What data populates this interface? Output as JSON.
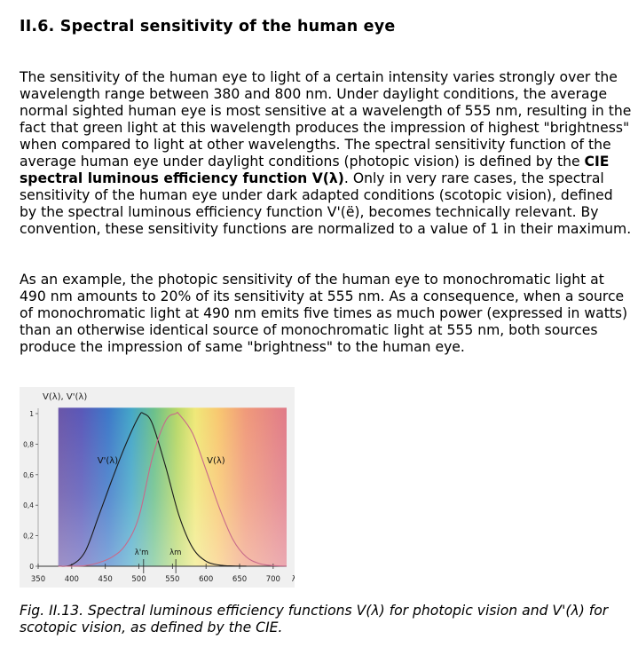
{
  "section": {
    "title": "II.6. Spectral sensitivity of the human eye"
  },
  "paragraph1": {
    "before_bold": "The sensitivity of the human eye to light of a certain intensity varies strongly over the wavelength range between 380 and 800 nm. Under daylight conditions, the average normal sighted human eye is most sensitive at a wavelength of 555 nm, resulting in the fact that green light at this wavelength produces the impression of highest \"brightness\" when compared to light at other wavelengths. The spectral sensitivity function of the average human eye under daylight conditions (photopic vision) is defined by the ",
    "bold": "CIE spectral luminous efficiency function V(λ)",
    "after_bold": ". Only in very rare cases, the spectral sensitivity of the human eye under dark adapted conditions (scotopic vision), defined by the spectral luminous efficiency function V'(ë), becomes technically relevant. By convention, these sensitivity functions are normalized to a value of 1 in their maximum."
  },
  "paragraph2": {
    "text": "As an example, the photopic sensitivity of the human eye to monochromatic light at 490 nm amounts to 20% of its sensitivity at 555 nm. As a consequence, when a source of monochromatic light at 490 nm emits five times as much power (expressed in watts) than an otherwise identical source of monochromatic light at 555 nm, both sources produce the impression of same \"brightness\" to the human eye."
  },
  "figure": {
    "caption": "Fig. II.13. Spectral luminous efficiency functions V(λ) for photopic vision and V'(λ) for scotopic vision, as defined by the CIE."
  },
  "chart_data": {
    "type": "line",
    "title": "",
    "ylabel": "V(λ), V'(λ)",
    "xlabel": "λ[nm]",
    "xlim": [
      350,
      720
    ],
    "ylim": [
      0,
      1.05
    ],
    "x_ticks": [
      350,
      400,
      450,
      500,
      550,
      600,
      650,
      700
    ],
    "y_ticks": [
      {
        "value": 0,
        "label": "0"
      },
      {
        "value": 0.2,
        "label": "0,2"
      },
      {
        "value": 0.4,
        "label": "0,4"
      },
      {
        "value": 0.6,
        "label": "0,6"
      },
      {
        "value": 0.8,
        "label": "0,8"
      },
      {
        "value": 1,
        "label": "1"
      }
    ],
    "spectrum_background": {
      "from": 380,
      "to": 720
    },
    "grid": false,
    "series": [
      {
        "name": "V'(λ)",
        "color": "#1a1a1a",
        "peak_label": "λ'm",
        "peak_x": 507,
        "x": [
          380,
          400,
          420,
          440,
          460,
          480,
          500,
          507,
          520,
          540,
          560,
          580,
          600,
          620,
          640,
          660
        ],
        "y": [
          0.0006,
          0.0093,
          0.0966,
          0.3281,
          0.567,
          0.793,
          0.982,
          1.0,
          0.935,
          0.65,
          0.329,
          0.1212,
          0.0332,
          0.0074,
          0.0015,
          0.0003
        ]
      },
      {
        "name": "V(λ)",
        "color": "#c86a8a",
        "peak_label": "λm",
        "peak_x": 555,
        "x": [
          380,
          400,
          420,
          440,
          460,
          480,
          500,
          520,
          540,
          555,
          560,
          580,
          600,
          620,
          640,
          660,
          680,
          700,
          720
        ],
        "y": [
          0.0,
          0.0004,
          0.004,
          0.023,
          0.06,
          0.139,
          0.323,
          0.71,
          0.954,
          1.0,
          0.995,
          0.87,
          0.631,
          0.381,
          0.175,
          0.061,
          0.017,
          0.004,
          0.001
        ]
      }
    ]
  }
}
